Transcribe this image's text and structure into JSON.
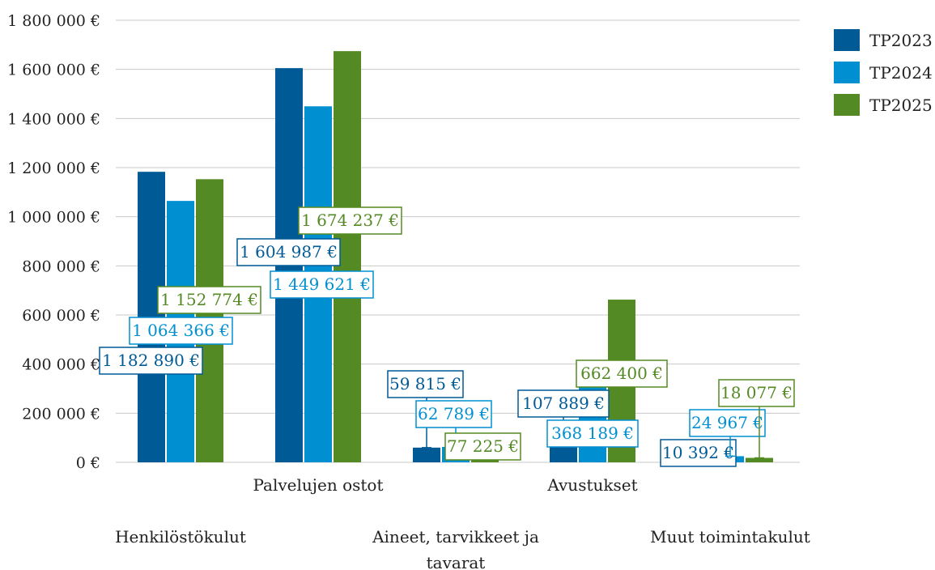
{
  "chart_data": {
    "type": "bar",
    "categories": [
      "Henkilöstökulut",
      "Palvelujen ostot",
      "Aineet, tarvikkeet ja tavarat",
      "Avustukset",
      "Muut toimintakulut"
    ],
    "series": [
      {
        "name": "TP2023",
        "color": "#005a96",
        "values": [
          1182890,
          1604987,
          59815,
          107889,
          10392
        ],
        "labels": [
          "1 182 890 €",
          "1 604 987 €",
          "59 815 €",
          "107 889 €",
          "10 392 €"
        ]
      },
      {
        "name": "TP2024",
        "color": "#0090d2",
        "values": [
          1064366,
          1449621,
          62789,
          368189,
          24967
        ],
        "labels": [
          "1 064 366 €",
          "1 449 621 €",
          "62 789 €",
          "368 189 €",
          "24 967 €"
        ]
      },
      {
        "name": "TP2025",
        "color": "#548a23",
        "values": [
          1152774,
          1674237,
          77225,
          662400,
          18077
        ],
        "labels": [
          "1 152 774 €",
          "1 674 237 €",
          "77 225 €",
          "662 400 €",
          "18 077 €"
        ]
      }
    ],
    "yticks": [
      {
        "value": 0,
        "label": "0 €"
      },
      {
        "value": 200000,
        "label": "200 000 €"
      },
      {
        "value": 400000,
        "label": "400 000 €"
      },
      {
        "value": 600000,
        "label": "600 000 €"
      },
      {
        "value": 800000,
        "label": "800 000 €"
      },
      {
        "value": 1000000,
        "label": "1 000 000 €"
      },
      {
        "value": 1200000,
        "label": "1 200 000 €"
      },
      {
        "value": 1400000,
        "label": "1 400 000 €"
      },
      {
        "value": 1600000,
        "label": "1 600 000 €"
      },
      {
        "value": 1800000,
        "label": "1 800 000 €"
      }
    ],
    "ylim": [
      0,
      1800000
    ],
    "grid": true,
    "legend": "right",
    "gridColor": "#c8c8c8",
    "textColor": "#222222"
  }
}
